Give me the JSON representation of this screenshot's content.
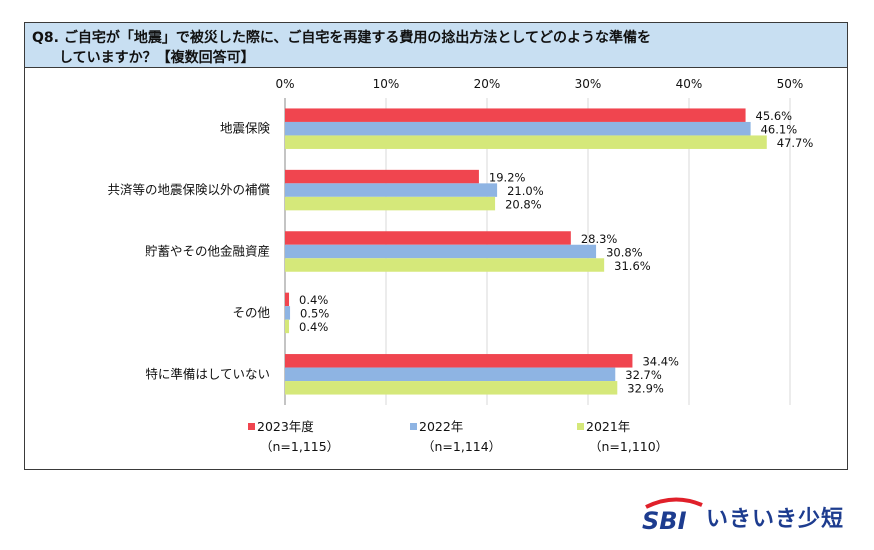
{
  "question": {
    "line1": "Q8. ご自宅が「地震」で被災した際に、ご自宅を再建する費用の捻出方法としてどのような準備を",
    "line2": "していますか？【複数回答可】"
  },
  "chart_data": {
    "type": "bar",
    "orientation": "horizontal",
    "xlim": [
      0,
      50
    ],
    "ticks": [
      "0%",
      "10%",
      "20%",
      "30%",
      "40%",
      "50%"
    ],
    "tick_values": [
      0,
      10,
      20,
      30,
      40,
      50
    ],
    "grid": true,
    "legend_position": "bottom",
    "categories": [
      "地震保険",
      "共済等の地震保険以外の補償",
      "貯蓄やその他金融資産",
      "その他",
      "特に準備はしていない"
    ],
    "series": [
      {
        "name": "2023年度",
        "n": "（n=1,115）",
        "color": "#f0454f",
        "values": [
          45.6,
          19.2,
          28.3,
          0.4,
          34.4
        ],
        "labels": [
          "45.6%",
          "19.2%",
          "28.3%",
          "0.4%",
          "34.4%"
        ]
      },
      {
        "name": "2022年",
        "n": "（n=1,114）",
        "color": "#8eb4e3",
        "values": [
          46.1,
          21.0,
          30.8,
          0.5,
          32.7
        ],
        "labels": [
          "46.1%",
          "21.0%",
          "30.8%",
          "0.5%",
          "32.7%"
        ]
      },
      {
        "name": "2021年",
        "n": "（n=1,110）",
        "color": "#d5e87a",
        "values": [
          47.7,
          20.8,
          31.6,
          0.4,
          32.9
        ],
        "labels": [
          "47.7%",
          "20.8%",
          "31.6%",
          "0.4%",
          "32.9%"
        ]
      }
    ]
  },
  "logo": {
    "text": "SBIいきいき少短",
    "colors": {
      "blue": "#1d3c8f",
      "red": "#e0202a"
    }
  }
}
